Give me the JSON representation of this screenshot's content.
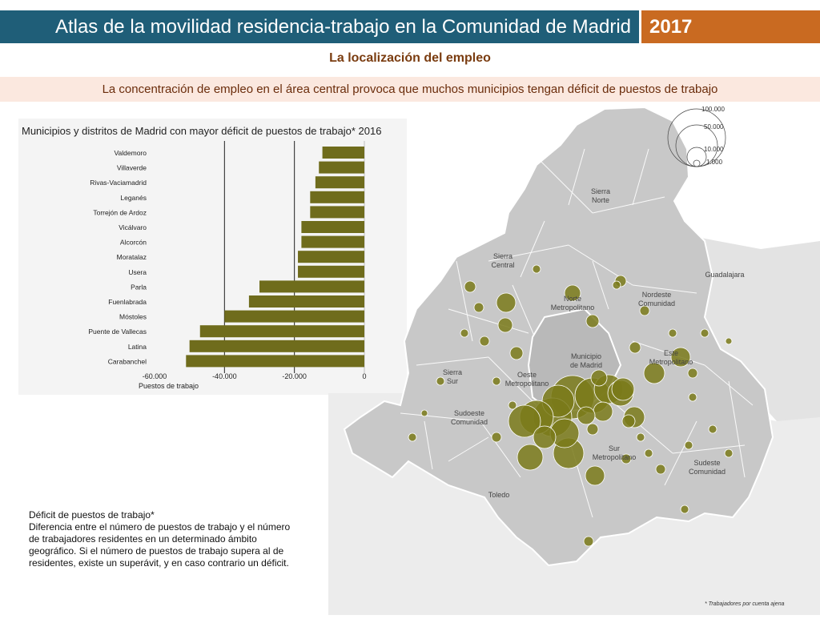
{
  "header": {
    "title": "Atlas de la movilidad residencia-trabajo en la Comunidad de Madrid",
    "year": "2017"
  },
  "subtitle": "La localización del empleo",
  "banner": "La concentración de empleo en el área central provoca que muchos municipios tengan déficit de puestos de trabajo",
  "colors": {
    "title_bar": "#1f5e78",
    "year_box": "#c96a21",
    "bar": "#6f6c1c",
    "bubble": "#7a7a1a"
  },
  "chart_data": {
    "type": "bar",
    "orientation": "horizontal",
    "title": "Municipios y distritos de Madrid con mayor déficit de puestos de trabajo* 2016",
    "xlabel": "Puestos de trabajo",
    "xlim": [
      -60000,
      0
    ],
    "x_ticks": [
      "-60.000",
      "-40.000",
      "-20.000",
      "0"
    ],
    "categories": [
      "Valdemoro",
      "Villaverde",
      "Rivas-Vaciamadrid",
      "Leganés",
      "Torrejón de Ardoz",
      "Vicálvaro",
      "Alcorcón",
      "Moratalaz",
      "Usera",
      "Parla",
      "Fuenlabrada",
      "Móstoles",
      "Puente de Vallecas",
      "Latina",
      "Carabanchel"
    ],
    "values": [
      -12000,
      -13000,
      -14000,
      -15500,
      -15500,
      -18000,
      -18000,
      -19000,
      -19000,
      -30000,
      -33000,
      -40000,
      -47000,
      -50000,
      -51000
    ],
    "grid": "vertical lines at -40.000 and -20.000"
  },
  "map": {
    "legend_values": [
      "100.000",
      "50.000",
      "10.000",
      "1.000"
    ],
    "region_labels": [
      {
        "line1": "Sierra",
        "line2": "Norte"
      },
      {
        "line1": "Sierra",
        "line2": "Central"
      },
      {
        "line1": "Norte",
        "line2": "Metropolitano"
      },
      {
        "line1": "Nordeste",
        "line2": "Comunidad"
      },
      {
        "line1": "Guadalajara",
        "line2": ""
      },
      {
        "line1": "Municipio",
        "line2": "de Madrid"
      },
      {
        "line1": "Este",
        "line2": "Metropolitano"
      },
      {
        "line1": "Sierra",
        "line2": "Sur"
      },
      {
        "line1": "Oeste",
        "line2": "Metropolitano"
      },
      {
        "line1": "Sudoeste",
        "line2": "Comunidad"
      },
      {
        "line1": "Sur",
        "line2": "Metropolitano"
      },
      {
        "line1": "Sudeste",
        "line2": "Comunidad"
      },
      {
        "line1": "Toledo",
        "line2": ""
      }
    ]
  },
  "note": {
    "heading": "Déficit de puestos de trabajo*",
    "body": "Diferencia entre el número de puestos de trabajo y el número de trabajadores residentes  en un determinado ámbito geográfico. Si el número de puestos de trabajo supera al de residentes, existe un superávit, y en caso contrario un déficit."
  },
  "footnote": "* Trabajadores por cuenta ajena"
}
